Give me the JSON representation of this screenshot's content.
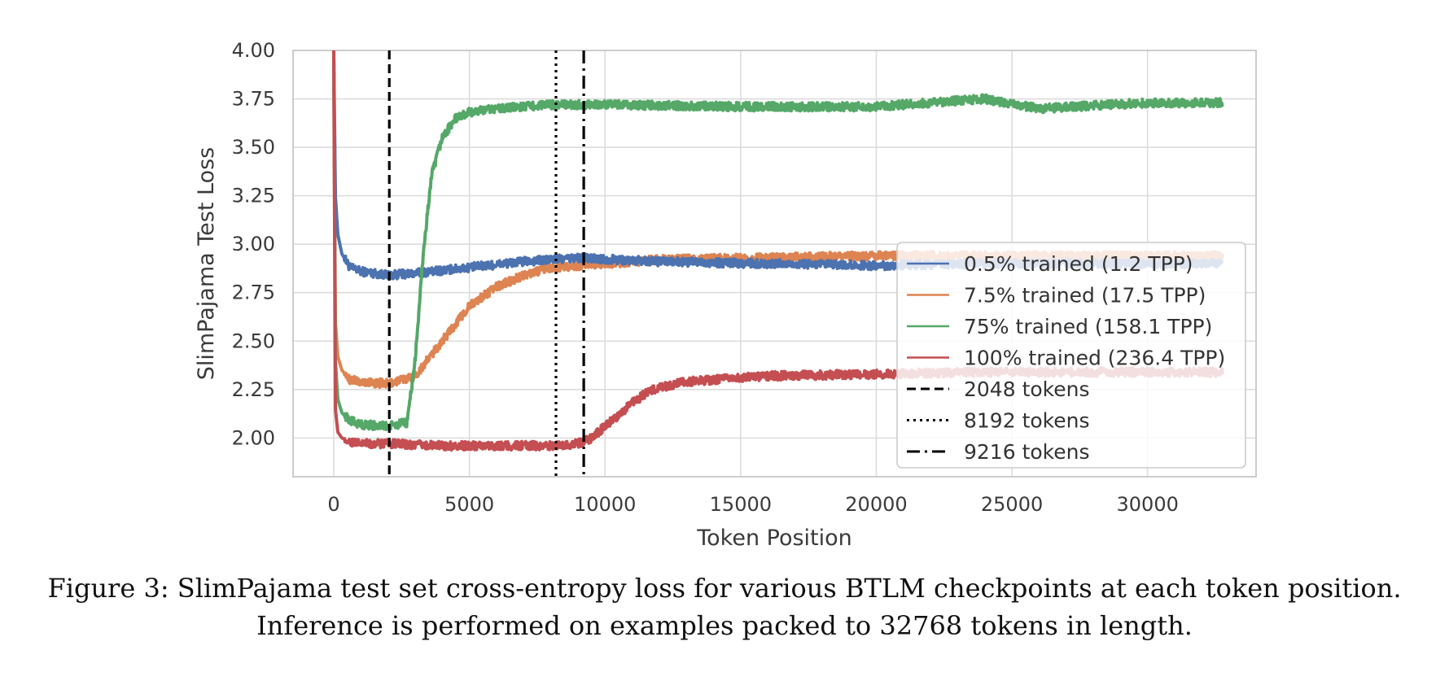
{
  "chart_data": {
    "type": "line",
    "xlabel": "Token Position",
    "ylabel": "SlimPajama Test Loss",
    "xlim": [
      -1500,
      34000
    ],
    "ylim": [
      1.8,
      4.0
    ],
    "xticks": [
      0,
      5000,
      10000,
      15000,
      20000,
      25000,
      30000
    ],
    "yticks": [
      2.0,
      2.25,
      2.5,
      2.75,
      3.0,
      3.25,
      3.5,
      3.75,
      4.0
    ],
    "xtick_labels": [
      "0",
      "5000",
      "10000",
      "15000",
      "20000",
      "25000",
      "30000"
    ],
    "ytick_labels": [
      "2.00",
      "2.25",
      "2.50",
      "2.75",
      "3.00",
      "3.25",
      "3.50",
      "3.75",
      "4.00"
    ],
    "grid": true,
    "legend_position": "center-right",
    "series": [
      {
        "name": "0.5% trained (1.2 TPP)",
        "color": "#4C72B0",
        "x": [
          0,
          60,
          150,
          300,
          600,
          1000,
          2000,
          3000,
          5000,
          7000,
          9000,
          12000,
          16000,
          20000,
          24000,
          28000,
          32768
        ],
        "y": [
          4.0,
          3.25,
          3.05,
          2.95,
          2.88,
          2.86,
          2.84,
          2.85,
          2.88,
          2.91,
          2.93,
          2.91,
          2.9,
          2.89,
          2.9,
          2.9,
          2.9
        ]
      },
      {
        "name": "7.5% trained (17.5 TPP)",
        "color": "#DD8452",
        "x": [
          0,
          60,
          150,
          300,
          600,
          1000,
          2000,
          3000,
          4000,
          5000,
          6000,
          7000,
          8000,
          10000,
          12000,
          16000,
          20000,
          24000,
          28000,
          32768
        ],
        "y": [
          4.0,
          2.6,
          2.42,
          2.35,
          2.3,
          2.29,
          2.28,
          2.32,
          2.5,
          2.68,
          2.78,
          2.84,
          2.88,
          2.9,
          2.92,
          2.93,
          2.94,
          2.94,
          2.94,
          2.94
        ]
      },
      {
        "name": "75% trained (158.1 TPP)",
        "color": "#55A868",
        "x": [
          0,
          60,
          150,
          300,
          600,
          1000,
          2000,
          2700,
          3000,
          3300,
          3600,
          4000,
          4500,
          5000,
          6000,
          7000,
          8000,
          10000,
          15000,
          20000,
          24000,
          26000,
          30000,
          32768
        ],
        "y": [
          4.0,
          2.4,
          2.2,
          2.13,
          2.09,
          2.07,
          2.06,
          2.08,
          2.4,
          2.95,
          3.35,
          3.55,
          3.65,
          3.68,
          3.7,
          3.71,
          3.72,
          3.72,
          3.71,
          3.71,
          3.75,
          3.7,
          3.73,
          3.73
        ]
      },
      {
        "name": "100% trained (236.4 TPP)",
        "color": "#C44E52",
        "x": [
          0,
          60,
          150,
          300,
          600,
          1000,
          2000,
          4000,
          6000,
          8000,
          9000,
          9500,
          10000,
          10500,
          11000,
          11500,
          12000,
          13000,
          14000,
          16000,
          20000,
          24000,
          28000,
          32768
        ],
        "y": [
          4.0,
          2.15,
          2.03,
          2.0,
          1.98,
          1.97,
          1.97,
          1.96,
          1.96,
          1.96,
          1.97,
          2.0,
          2.06,
          2.12,
          2.18,
          2.23,
          2.26,
          2.29,
          2.3,
          2.32,
          2.33,
          2.34,
          2.34,
          2.34
        ]
      }
    ],
    "vlines": [
      {
        "name": "2048 tokens",
        "x": 2048,
        "dash": "dashed"
      },
      {
        "name": "8192 tokens",
        "x": 8192,
        "dash": "dotted"
      },
      {
        "name": "9216 tokens",
        "x": 9216,
        "dash": "dashdot"
      }
    ]
  },
  "caption": {
    "line1": "Figure 3: SlimPajama test set cross-entropy loss for various BTLM checkpoints at each token position.",
    "line2": "Inference is performed on examples packed to 32768 tokens in length."
  }
}
